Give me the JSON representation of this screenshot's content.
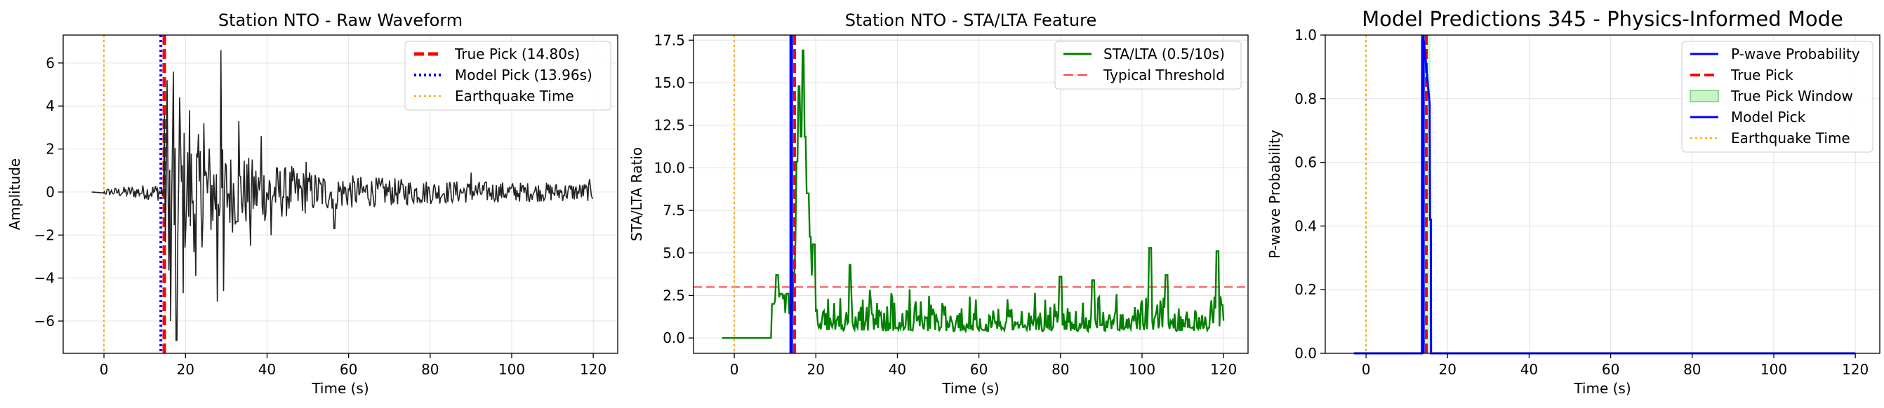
{
  "colors": {
    "waveform": "#222222",
    "true_pick": "#ff0000",
    "model_pick": "#0000ff",
    "earthquake": "#ffa500",
    "stalta": "#008000",
    "threshold": "#ff4040",
    "prob": "#0000ff",
    "window": "#90ee90"
  },
  "chart_data": [
    {
      "type": "line",
      "title": "Station NTO - Raw Waveform",
      "xlabel": "Time (s)",
      "ylabel": "Amplitude",
      "xlim": [
        -10,
        126
      ],
      "ylim": [
        -7.5,
        7.3
      ],
      "xticks": [
        0,
        20,
        40,
        60,
        80,
        100,
        120
      ],
      "yticks": [
        -6,
        -4,
        -2,
        0,
        2,
        4,
        6
      ],
      "grid": true,
      "legend_position": "top-right",
      "series": [
        {
          "name": "True Pick (14.80s)",
          "kind": "vline",
          "x": 14.8,
          "style": "dashed",
          "color": "#ff0000"
        },
        {
          "name": "Model Pick (13.96s)",
          "kind": "vline",
          "x": 13.96,
          "style": "dotted",
          "color": "#0000ff"
        },
        {
          "name": "Earthquake Time",
          "kind": "vline",
          "x": 0,
          "style": "dotted",
          "color": "#ffa500"
        }
      ],
      "waveform": {
        "x_start": -3,
        "x_end": 120,
        "onset": 14.8,
        "peaks": [
          {
            "x": 15.5,
            "y": 5.2
          },
          {
            "x": 16.3,
            "y": -6.0
          },
          {
            "x": 17.0,
            "y": 5.6
          },
          {
            "x": 17.8,
            "y": -6.9
          },
          {
            "x": 18.6,
            "y": 4.4
          },
          {
            "x": 19.4,
            "y": -4.7
          },
          {
            "x": 21.0,
            "y": 3.8
          },
          {
            "x": 22.5,
            "y": -3.9
          },
          {
            "x": 24.5,
            "y": 3.2
          },
          {
            "x": 27.8,
            "y": -5.1
          },
          {
            "x": 28.6,
            "y": 6.6
          },
          {
            "x": 29.4,
            "y": -4.6
          },
          {
            "x": 33.0,
            "y": 3.3
          },
          {
            "x": 36.0,
            "y": -2.5
          },
          {
            "x": 38.5,
            "y": 2.6
          },
          {
            "x": 41.0,
            "y": -2.0
          },
          {
            "x": 46.0,
            "y": 1.2
          },
          {
            "x": 49.5,
            "y": 1.4
          },
          {
            "x": 56.5,
            "y": -1.7
          },
          {
            "x": 90.0,
            "y": 0.9
          },
          {
            "x": 119.0,
            "y": 0.6
          }
        ]
      }
    },
    {
      "type": "line",
      "title": "Station NTO - STA/LTA Feature",
      "xlabel": "Time (s)",
      "ylabel": "STA/LTA Ratio",
      "xlim": [
        -10,
        126
      ],
      "ylim": [
        -0.9,
        17.8
      ],
      "xticks": [
        0,
        20,
        40,
        60,
        80,
        100,
        120
      ],
      "yticks": [
        0.0,
        2.5,
        5.0,
        7.5,
        10.0,
        12.5,
        15.0,
        17.5
      ],
      "ytick_labels": [
        "0.0",
        "2.5",
        "5.0",
        "7.5",
        "10.0",
        "12.5",
        "15.0",
        "17.5"
      ],
      "grid": true,
      "legend_position": "top-right",
      "series": [
        {
          "name": "STA/LTA (0.5/10s)",
          "kind": "line",
          "color": "#008000"
        },
        {
          "name": "Typical Threshold",
          "kind": "hline",
          "y": 3.0,
          "style": "dashed",
          "color": "#ff4040"
        }
      ],
      "markers": [
        {
          "kind": "vline",
          "x": 14.8,
          "style": "dashed",
          "color": "#ff0000"
        },
        {
          "kind": "vline",
          "x": 13.96,
          "style": "solid",
          "color": "#0000ff"
        },
        {
          "kind": "vline",
          "x": 0,
          "style": "dotted",
          "color": "#ffa500"
        }
      ],
      "stalta": {
        "x_start": -3,
        "x_end": 120,
        "flat_until": 9,
        "peaks": [
          {
            "x": 9.5,
            "y": 2.0
          },
          {
            "x": 10.5,
            "y": 3.7
          },
          {
            "x": 11.5,
            "y": 2.6
          },
          {
            "x": 13.0,
            "y": 2.6
          },
          {
            "x": 15.8,
            "y": 14.8
          },
          {
            "x": 16.8,
            "y": 16.9
          },
          {
            "x": 18.0,
            "y": 8.5
          },
          {
            "x": 19.5,
            "y": 5.5
          },
          {
            "x": 28.3,
            "y": 4.3
          },
          {
            "x": 80.0,
            "y": 3.6
          },
          {
            "x": 88.0,
            "y": 3.4
          },
          {
            "x": 102.0,
            "y": 5.3
          },
          {
            "x": 106.0,
            "y": 3.7
          },
          {
            "x": 118.5,
            "y": 5.1
          }
        ]
      }
    },
    {
      "type": "area",
      "title": "Model Predictions 345 - Physics-Informed Mode",
      "xlabel": "Time (s)",
      "ylabel": "P-wave Probability",
      "xlim": [
        -10,
        126
      ],
      "ylim": [
        0,
        1
      ],
      "xticks": [
        0,
        20,
        40,
        60,
        80,
        100,
        120
      ],
      "yticks": [
        0.0,
        0.2,
        0.4,
        0.6,
        0.8,
        1.0
      ],
      "ytick_labels": [
        "0.0",
        "0.2",
        "0.4",
        "0.6",
        "0.8",
        "1.0"
      ],
      "grid": true,
      "legend_position": "top-right",
      "series": [
        {
          "name": "P-wave Probability",
          "kind": "line",
          "color": "#0000ff"
        },
        {
          "name": "True Pick",
          "kind": "vline",
          "x": 14.8,
          "style": "dashed",
          "color": "#ff0000"
        },
        {
          "name": "True Pick Window",
          "kind": "span",
          "x0": 13.8,
          "x1": 15.8,
          "color": "#90ee90"
        },
        {
          "name": "Model Pick",
          "kind": "vline",
          "x": 13.96,
          "style": "solid",
          "color": "#0000ff"
        },
        {
          "name": "Earthquake Time",
          "kind": "vline",
          "x": 0,
          "style": "dotted",
          "color": "#ffa500"
        }
      ],
      "probability": {
        "x_start": -3,
        "x_end": 120,
        "pulse_start": 13.7,
        "pulse_peak": 14.2,
        "pulse_end": 15.9,
        "peak_value": 0.98,
        "shoulder_value": 0.42
      }
    }
  ]
}
